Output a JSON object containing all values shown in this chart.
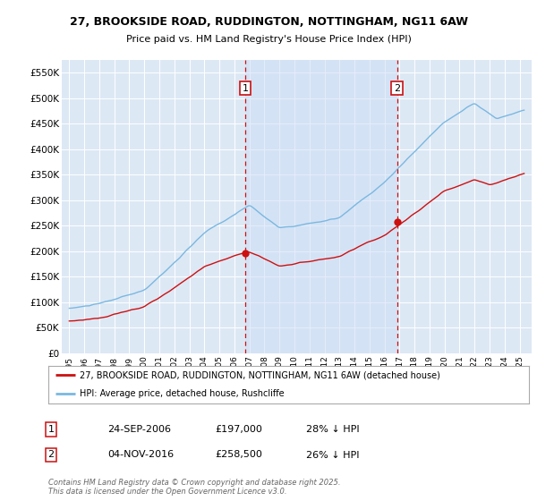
{
  "title_line1": "27, BROOKSIDE ROAD, RUDDINGTON, NOTTINGHAM, NG11 6AW",
  "title_line2": "Price paid vs. HM Land Registry's House Price Index (HPI)",
  "hpi_label": "HPI: Average price, detached house, Rushcliffe",
  "property_label": "27, BROOKSIDE ROAD, RUDDINGTON, NOTTINGHAM, NG11 6AW (detached house)",
  "hpi_color": "#7ab8e0",
  "property_color": "#cc1111",
  "marker_color": "#cc1111",
  "dashed_color": "#cc1111",
  "bg_color": "#dde8f5",
  "shade_color": "#ccddf5",
  "sale1_date": "24-SEP-2006",
  "sale1_price": 197000,
  "sale1_label": "28% ↓ HPI",
  "sale2_date": "04-NOV-2016",
  "sale2_price": 258500,
  "sale2_label": "26% ↓ HPI",
  "sale1_year": 2006.73,
  "sale2_year": 2016.84,
  "ylim": [
    0,
    575000
  ],
  "yticks": [
    0,
    50000,
    100000,
    150000,
    200000,
    250000,
    300000,
    350000,
    400000,
    450000,
    500000,
    550000
  ],
  "ytick_labels": [
    "£0",
    "£50K",
    "£100K",
    "£150K",
    "£200K",
    "£250K",
    "£300K",
    "£350K",
    "£400K",
    "£450K",
    "£500K",
    "£550K"
  ],
  "footer": "Contains HM Land Registry data © Crown copyright and database right 2025.\nThis data is licensed under the Open Government Licence v3.0.",
  "xlim_start": 1994.5,
  "xlim_end": 2025.8
}
